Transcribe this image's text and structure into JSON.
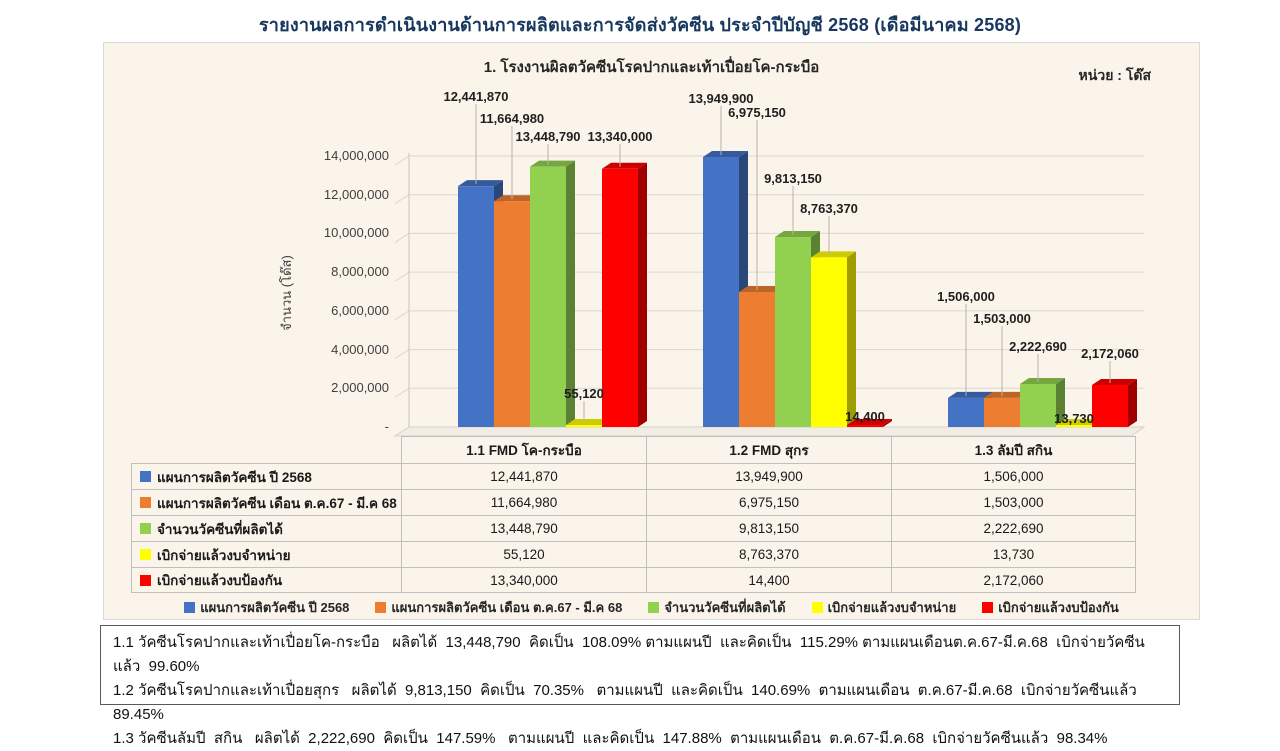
{
  "page_title": "รายงานผลการดำเนินงานด้านการผลิตและการจัดส่งวัคซีน ประจำปีบัญชี 2568 (เดือมีนาคม 2568)",
  "chart": {
    "title": "1. โรงงานผิลตวัคซีนโรคปากและเท้าเปื่อยโค-กระบือ",
    "unit_label": "หน่วย : โด๊ส",
    "y_axis_title": "จำนวน (โด๊ส)",
    "y_ticks": [
      "14,000,000",
      "12,000,000",
      "10,000,000",
      "8,000,000",
      "6,000,000",
      "4,000,000",
      "2,000,000",
      "-"
    ]
  },
  "chart_data": {
    "type": "bar",
    "title": "1. โรงงานผิลตวัคซีนโรคปากและเท้าเปื่อยโค-กระบือ",
    "ylabel": "จำนวน (โด๊ส)",
    "ylim": [
      0,
      14000000
    ],
    "grid": true,
    "legend_position": "bottom",
    "categories": [
      "1.1 FMD โค-กระบือ",
      "1.2 FMD สุกร",
      "1.3 ลัมปี สกิน"
    ],
    "series": [
      {
        "name": "แผนการผลิตวัคซีน ปี 2568",
        "color": "#4472C4",
        "values": [
          12441870,
          13949900,
          1506000
        ],
        "display": [
          "12,441,870",
          "13,949,900",
          "1,506,000"
        ]
      },
      {
        "name": "แผนการผลิตวัคซีน เดือน ต.ค.67 - มี.ค 68",
        "color": "#ED7D31",
        "values": [
          11664980,
          6975150,
          1503000
        ],
        "display": [
          "11,664,980",
          "6,975,150",
          "1,503,000"
        ]
      },
      {
        "name": "จำนวนวัคซีนที่ผลิตได้",
        "color": "#92D050",
        "values": [
          13448790,
          9813150,
          2222690
        ],
        "display": [
          "13,448,790",
          "9,813,150",
          "2,222,690"
        ]
      },
      {
        "name": "เบิกจ่ายแล้วงบจำหน่าย",
        "color": "#FFFF00",
        "values": [
          55120,
          8763370,
          13730
        ],
        "display": [
          "55,120",
          "8,763,370",
          "13,730"
        ]
      },
      {
        "name": "เบิกจ่ายแล้วงบป้องกัน",
        "color": "#FF0000",
        "values": [
          13340000,
          14400,
          2172060
        ],
        "display": [
          "13,340,000",
          "14,400",
          "2,172,060"
        ]
      }
    ]
  },
  "notes": [
    "1.1 วัคซีนโรคปากและเท้าเปื่อยโค-กระบือ   ผลิตได้  13,448,790  คิดเป็น  108.09% ตามแผนปี  และคิดเป็น  115.29% ตามแผนเดือนต.ค.67-มี.ค.68  เบิกจ่ายวัคซีนแล้ว  99.60%",
    "1.2 วัคซีนโรคปากและเท้าเปื่อยสุกร   ผลิตได้  9,813,150  คิดเป็น  70.35%   ตามแผนปี  และคิดเป็น  140.69%  ตามแผนเดือน  ต.ค.67-มี.ค.68  เบิกจ่ายวัคซีนแล้ว  89.45%",
    "1.3 วัคซีนลัมปี  สกิน   ผลิตได้  2,222,690  คิดเป็น  147.59%   ตามแผนปี  และคิดเป็น  147.88%  ตามแผนเดือน  ต.ค.67-มี.ค.68  เบิกจ่ายวัคซีนแล้ว  98.34%"
  ]
}
